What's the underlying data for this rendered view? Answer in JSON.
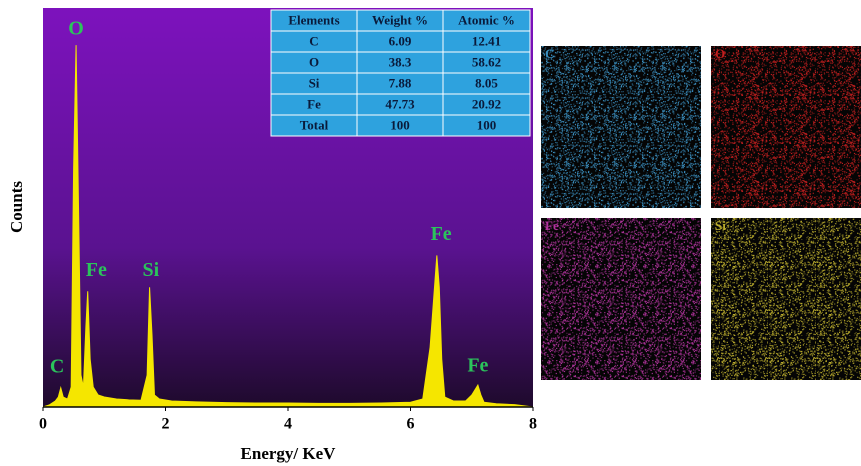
{
  "chart_data": {
    "type": "area",
    "x_label": "Energy/ KeV",
    "y_label": "Counts",
    "x": [
      0,
      0.1,
      0.2,
      0.25,
      0.29,
      0.33,
      0.4,
      0.46,
      0.5,
      0.54,
      0.58,
      0.62,
      0.66,
      0.7,
      0.73,
      0.77,
      0.82,
      0.9,
      1.0,
      1.2,
      1.4,
      1.6,
      1.7,
      1.74,
      1.78,
      1.82,
      1.9,
      2.1,
      2.5,
      3.0,
      3.5,
      4.0,
      4.5,
      5.0,
      5.5,
      6.0,
      6.2,
      6.32,
      6.43,
      6.47,
      6.51,
      6.56,
      6.7,
      6.9,
      7.0,
      7.1,
      7.15,
      7.2,
      7.4,
      7.7,
      8.0
    ],
    "values": [
      0,
      0.5,
      1.5,
      2.5,
      4.8,
      2.5,
      2,
      5,
      60,
      90.7,
      50,
      8,
      5,
      20,
      29,
      12,
      5,
      3,
      2.5,
      2,
      1.8,
      1.7,
      8,
      30,
      18,
      3,
      2,
      1.5,
      1.3,
      1.1,
      1,
      1,
      0.9,
      0.9,
      1,
      1.2,
      2,
      15,
      38,
      30,
      12,
      2.5,
      1.5,
      1.5,
      3,
      5.5,
      3,
      1.2,
      0.8,
      0.6,
      0
    ],
    "color": "#f5e600",
    "xlim": [
      0,
      8
    ],
    "xticks": [
      0,
      2,
      4,
      6,
      8
    ],
    "ylim": [
      0,
      100
    ],
    "annotations": [
      {
        "text": "C",
        "x": 0.23,
        "y": 9.8
      },
      {
        "text": "O",
        "x": 0.54,
        "y": 94.5
      },
      {
        "text": "Fe",
        "x": 0.87,
        "y": 34
      },
      {
        "text": "Si",
        "x": 1.76,
        "y": 34
      },
      {
        "text": "Fe",
        "x": 6.5,
        "y": 43
      },
      {
        "text": "Fe",
        "x": 7.1,
        "y": 10
      }
    ]
  },
  "table": {
    "header": [
      "Elements",
      "Weight %",
      "Atomic %"
    ],
    "rows": [
      [
        "C",
        6.09,
        12.41
      ],
      [
        "O",
        38.3,
        58.62
      ],
      [
        "Si",
        7.88,
        8.05
      ],
      [
        "Fe",
        47.73,
        20.92
      ],
      [
        "Total",
        100,
        100
      ]
    ]
  },
  "maps": [
    {
      "label": "C",
      "color": "#3a8fc0"
    },
    {
      "label": "O",
      "color": "#c41e1e"
    },
    {
      "label": "Fe",
      "color": "#b2339e"
    },
    {
      "label": "Si",
      "color": "#b8aa2c"
    }
  ]
}
